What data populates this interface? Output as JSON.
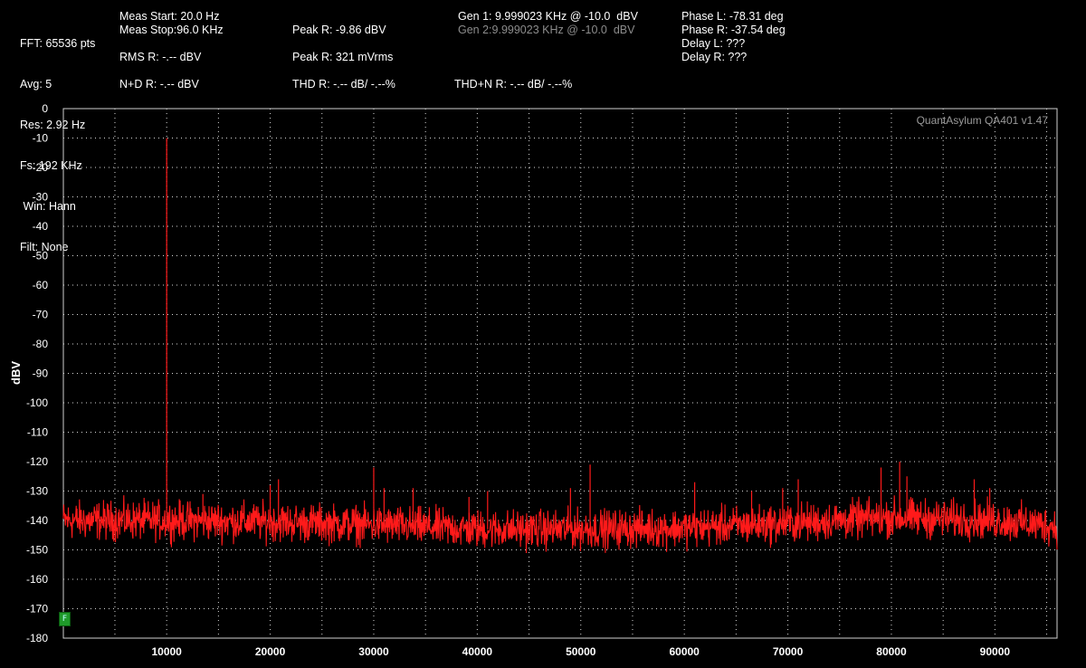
{
  "header": {
    "col1": [
      "FFT: 65536 pts",
      "Avg: 5",
      "Res: 2.92 Hz",
      "Fs: 192 KHz",
      " Win: Hann",
      "Filt: None"
    ],
    "meas_start": "Meas Start: 20.0 Hz",
    "meas_stop": "Meas Stop:96.0 KHz",
    "rms": "RMS R: -.-- dBV",
    "nd": "N+D R: -.-- dBV",
    "peak_dbv": "Peak R: -9.86 dBV",
    "peak_mv": "Peak R: 321 mVrms",
    "thd": "THD R: -.-- dB/ -.--%",
    "gen1": "Gen 1: 9.999023 KHz @ -10.0  dBV",
    "gen2": "Gen 2:9.999023 KHz @ -10.0  dBV",
    "thdn": "THD+N R: -.-- dB/ -.--%",
    "phase_l": "Phase L: -78.31 deg",
    "phase_r": "Phase R: -37.54 deg",
    "delay_l": "Delay L: ???",
    "delay_r": "Delay R: ???"
  },
  "watermark": "QuantAsylum QA401 v1.47",
  "badge_label": "F",
  "colors": {
    "trace": "#ff1a1a",
    "grid": "#d8d8d8",
    "background": "#000000",
    "badge": "#1f9a2a",
    "gen2_text": "#8c8c8c"
  },
  "chart_data": {
    "type": "line",
    "ylabel": "dBV",
    "xlabel": "",
    "xlim": [
      20,
      96000
    ],
    "ylim": [
      -180,
      0
    ],
    "x_ticks": [
      10000,
      20000,
      30000,
      40000,
      50000,
      60000,
      70000,
      80000,
      90000
    ],
    "y_ticks": [
      0,
      -10,
      -20,
      -30,
      -40,
      -50,
      -60,
      -70,
      -80,
      -90,
      -100,
      -110,
      -120,
      -130,
      -140,
      -150,
      -160,
      -170,
      -180
    ],
    "grid": true,
    "series": [
      {
        "noise_floor": [
          [
            20,
            -140
          ],
          [
            10000,
            -140
          ],
          [
            20000,
            -140.5
          ],
          [
            30000,
            -141.5
          ],
          [
            40000,
            -143
          ],
          [
            50000,
            -143
          ],
          [
            60000,
            -142.5
          ],
          [
            70000,
            -141
          ],
          [
            80000,
            -139
          ],
          [
            90000,
            -140
          ],
          [
            96000,
            -142
          ]
        ],
        "noise_spread_db": 4,
        "peaks": [
          {
            "x": 10000,
            "y": -10
          },
          {
            "x": 13500,
            "y": -131
          },
          {
            "x": 20000,
            "y": -128
          },
          {
            "x": 20800,
            "y": -126
          },
          {
            "x": 30000,
            "y": -122
          },
          {
            "x": 31000,
            "y": -129
          },
          {
            "x": 33800,
            "y": -129
          },
          {
            "x": 39200,
            "y": -132
          },
          {
            "x": 41000,
            "y": -130
          },
          {
            "x": 49000,
            "y": -129
          },
          {
            "x": 50900,
            "y": -121
          },
          {
            "x": 61000,
            "y": -127
          },
          {
            "x": 66500,
            "y": -130
          },
          {
            "x": 69500,
            "y": -129
          },
          {
            "x": 71000,
            "y": -126
          },
          {
            "x": 79000,
            "y": -122
          },
          {
            "x": 80800,
            "y": -120
          },
          {
            "x": 81500,
            "y": -125
          },
          {
            "x": 88000,
            "y": -126
          },
          {
            "x": 89500,
            "y": -129
          }
        ]
      }
    ]
  }
}
